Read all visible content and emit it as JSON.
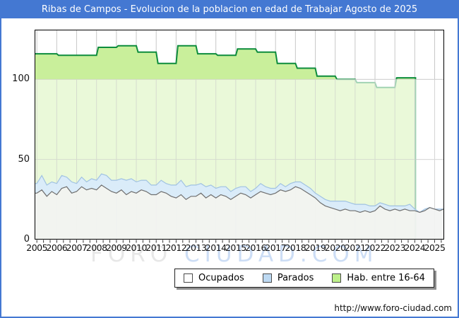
{
  "frame": {
    "title": "Ribas de Campos - Evolucion de la poblacion en edad de Trabajar Agosto de 2025",
    "footer_url": "http://www.foro-ciudad.com"
  },
  "watermark": {
    "left": "FORO",
    "right": "CIUDAD.COM"
  },
  "colors": {
    "frame_blue": "#4478d2",
    "plot_border": "#000000",
    "gridline": "#c8c8c8",
    "tick": "#333333",
    "green_fill": "#c9ef9b",
    "green_line": "#0d8c3c",
    "blue_fill": "#d9ebfb",
    "blue_line": "#a0c2e2",
    "grey_fill": "#f2f3f2",
    "grey_line": "#6f6f6f",
    "below100_overlay": "rgba(255,255,255,0.62)"
  },
  "legend": {
    "items": [
      {
        "label": "Ocupados",
        "swatch": "#fdfdfd"
      },
      {
        "label": "Parados",
        "swatch": "#bdd9f2"
      },
      {
        "label": "Hab. entre 16-64",
        "swatch": "#bdf08a"
      }
    ]
  },
  "chart_data": {
    "type": "area",
    "title": "Ribas de Campos - Evolucion de la poblacion en edad de Trabajar Agosto de 2025",
    "xlabel": "",
    "ylabel": "",
    "grid": true,
    "legend_position": "bottom",
    "x_axis": {
      "tick_labels": [
        "2005",
        "2006",
        "2007",
        "2008",
        "2009",
        "2010",
        "2011",
        "2012",
        "2013",
        "2014",
        "2015",
        "2016",
        "2017",
        "2018",
        "2019",
        "2020",
        "2021",
        "2022",
        "2023",
        "2024",
        "2025"
      ],
      "range": [
        2005,
        2025.67
      ],
      "minor_ticks_per_year": 3
    },
    "y_axis": {
      "ticks": [
        0,
        50,
        100
      ],
      "range": [
        0,
        131
      ]
    },
    "series": [
      {
        "name": "Ocupados",
        "type": "area",
        "x_start": 2005,
        "x_step": 0.25,
        "values": [
          29,
          31,
          27,
          30,
          28,
          32,
          33,
          29,
          30,
          33,
          31,
          32,
          31,
          34,
          32,
          30,
          29,
          31,
          28,
          30,
          29,
          31,
          30,
          28,
          28,
          30,
          29,
          27,
          26,
          28,
          25,
          27,
          27,
          29,
          26,
          28,
          26,
          28,
          27,
          25,
          27,
          29,
          28,
          26,
          28,
          30,
          29,
          28,
          29,
          31,
          30,
          31,
          33,
          32,
          30,
          28,
          26,
          23,
          21,
          20,
          19,
          18,
          19,
          18,
          18,
          17,
          18,
          17,
          18,
          21,
          19,
          18,
          19,
          18,
          19,
          18,
          18,
          17,
          18,
          20,
          19,
          18,
          19
        ]
      },
      {
        "name": "Parados",
        "type": "area",
        "stacked_on": "Ocupados",
        "x_start": 2005,
        "x_step": 0.25,
        "values": [
          6,
          9,
          7,
          6,
          7,
          8,
          6,
          7,
          5,
          6,
          5,
          6,
          6,
          7,
          8,
          7,
          8,
          7,
          9,
          8,
          7,
          6,
          7,
          6,
          6,
          7,
          6,
          7,
          8,
          9,
          8,
          7,
          7,
          6,
          7,
          6,
          6,
          5,
          6,
          5,
          5,
          4,
          5,
          4,
          4,
          5,
          4,
          4,
          3,
          4,
          3,
          4,
          3,
          4,
          4,
          4,
          3,
          4,
          4,
          4,
          5,
          6,
          5,
          5,
          4,
          5,
          4,
          4,
          3,
          2,
          3,
          3,
          2,
          3,
          2,
          4,
          1,
          0,
          1,
          0,
          0,
          1,
          0
        ]
      },
      {
        "name": "Hab. entre 16-64",
        "type": "step-area",
        "x_start": 2005,
        "x_step": 1,
        "ends_at": 2024,
        "values": [
          116,
          115,
          115,
          120,
          121,
          117,
          110,
          121,
          116,
          115,
          119,
          117,
          110,
          107,
          102,
          100,
          98,
          95,
          101
        ]
      }
    ]
  }
}
